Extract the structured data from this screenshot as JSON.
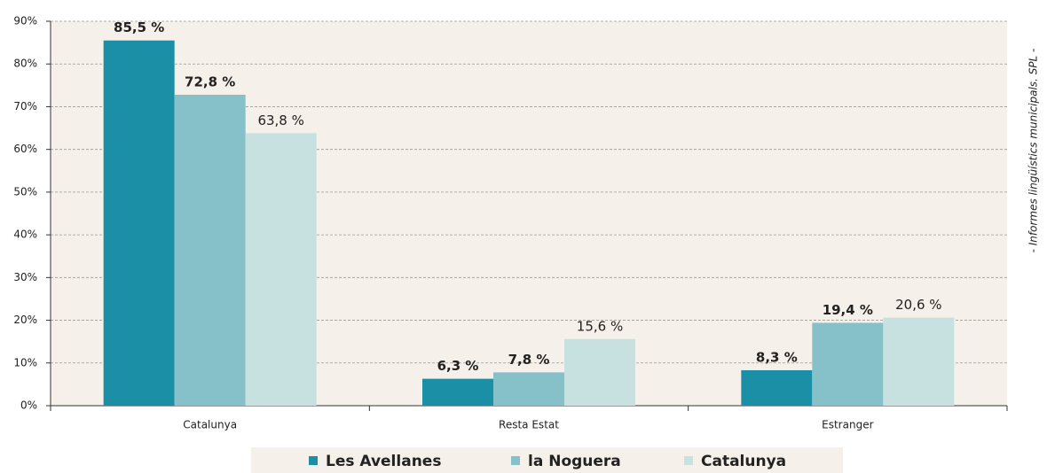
{
  "chart_data": {
    "type": "bar",
    "categories": [
      "Catalunya",
      "Resta Estat",
      "Estranger"
    ],
    "series": [
      {
        "name": "Les Avellanes",
        "color": "#1a8fa6",
        "values": [
          85.5,
          6.3,
          8.3
        ],
        "value_labels": [
          "85,5 %",
          "6,3 %",
          "8,3 %"
        ]
      },
      {
        "name": "la Noguera",
        "color": "#86c0c9",
        "values": [
          72.8,
          7.8,
          19.4
        ],
        "value_labels": [
          "72,8 %",
          "7,8 %",
          "19,4 %"
        ]
      },
      {
        "name": "Catalunya",
        "color": "#c7e0e0",
        "values": [
          63.8,
          15.6,
          20.6
        ],
        "value_labels": [
          "63,8 %",
          "15,6 %",
          "20,6 %"
        ]
      }
    ],
    "ylim": [
      0,
      90
    ],
    "yticks": [
      {
        "value": 0,
        "label": "0%"
      },
      {
        "value": 10,
        "label": "10%"
      },
      {
        "value": 20,
        "label": "20%"
      },
      {
        "value": 30,
        "label": "30%"
      },
      {
        "value": 40,
        "label": "40%"
      },
      {
        "value": 50,
        "label": "50%"
      },
      {
        "value": 60,
        "label": "60%"
      },
      {
        "value": 70,
        "label": "70%"
      },
      {
        "value": 80,
        "label": "80%"
      },
      {
        "value": 90,
        "label": "90%"
      }
    ],
    "grid": true,
    "legend": "bottom",
    "source": "- Informes lingüístics municipals. SPL -"
  }
}
